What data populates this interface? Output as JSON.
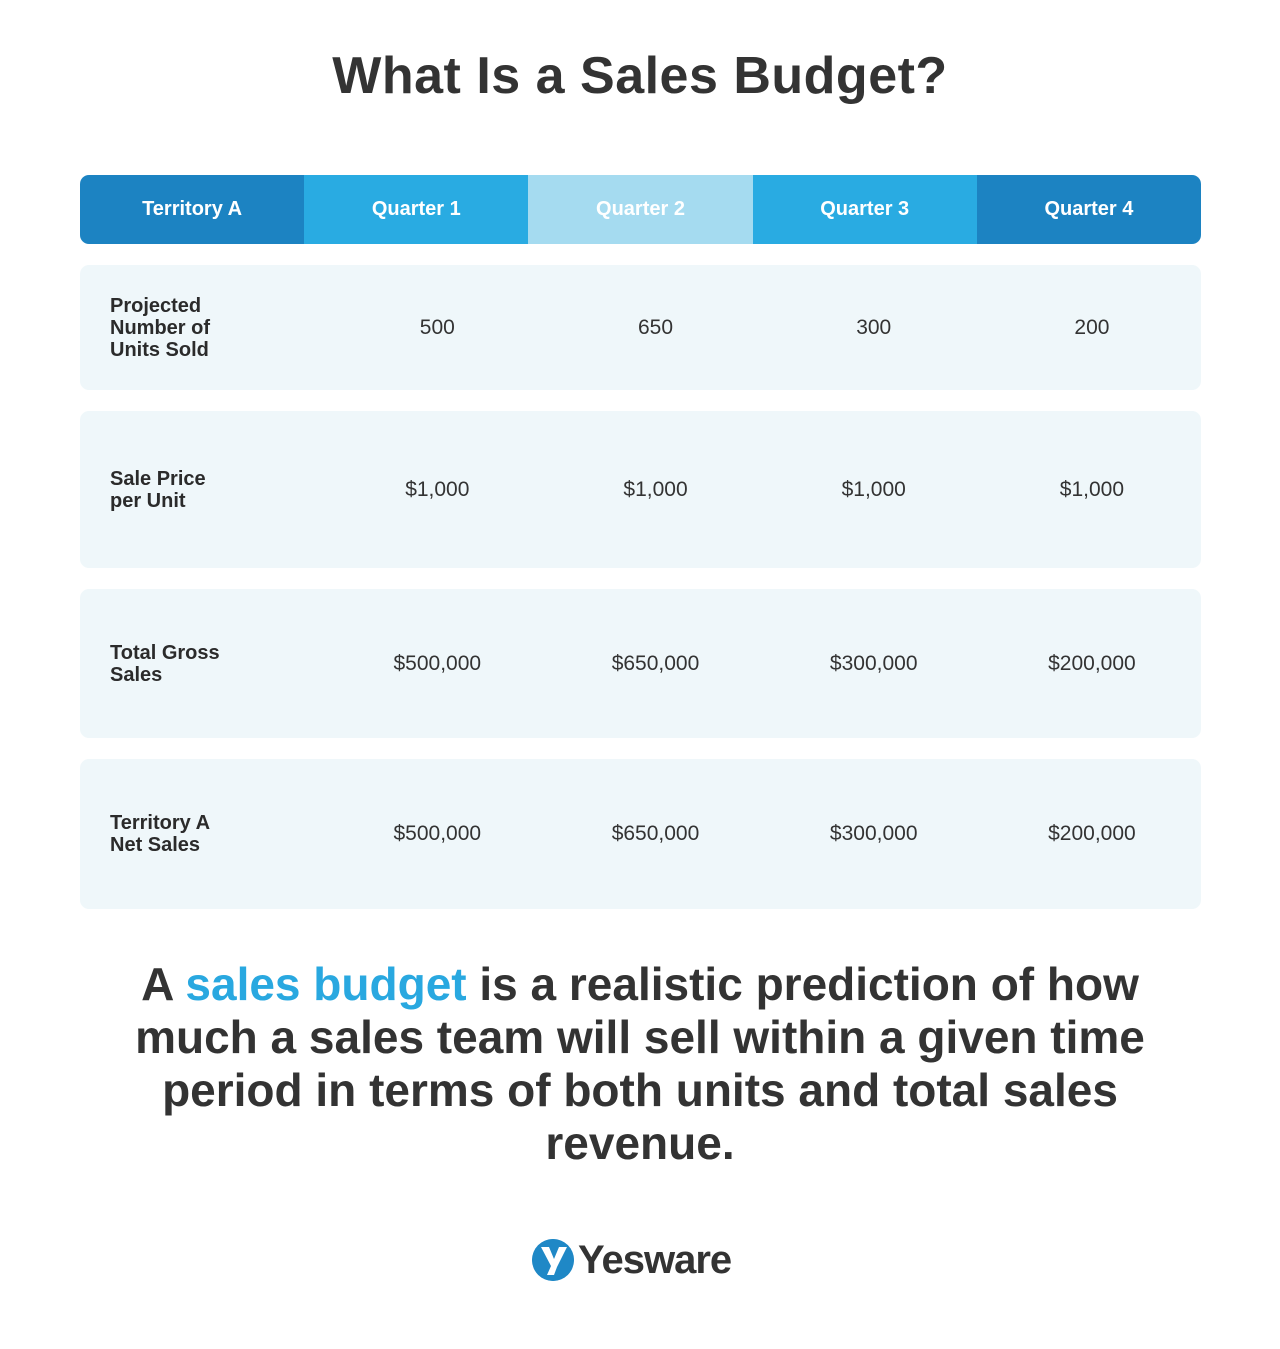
{
  "title": "What Is a Sales Budget?",
  "table": {
    "headers": [
      {
        "label": "Territory A",
        "color": "#1c83c2"
      },
      {
        "label": "Quarter 1",
        "color": "#29abe2"
      },
      {
        "label": "Quarter 2",
        "color": "#a5dbf0"
      },
      {
        "label": "Quarter 3",
        "color": "#29abe2"
      },
      {
        "label": "Quarter 4",
        "color": "#1c83c2"
      }
    ],
    "rows": [
      {
        "label": "Projected Number of Units Sold",
        "values": [
          "500",
          "650",
          "300",
          "200"
        ]
      },
      {
        "label": "Sale Price per Unit",
        "values": [
          "$1,000",
          "$1,000",
          "$1,000",
          "$1,000"
        ]
      },
      {
        "label": "Total Gross Sales",
        "values": [
          "$500,000",
          "$650,000",
          "$300,000",
          "$200,000"
        ]
      },
      {
        "label": "Territory A Net Sales",
        "values": [
          "$500,000",
          "$650,000",
          "$300,000",
          "$200,000"
        ]
      }
    ],
    "row_background": "#eff7fa"
  },
  "description": {
    "prefix": "A ",
    "highlight": "sales budget",
    "suffix": " is a realistic prediction of how much a sales team will sell within a given time period in terms of both units and total sales revenue.",
    "highlight_color": "#29a8e0"
  },
  "logo": {
    "text": "Yesware",
    "icon": "yesware-logo-icon",
    "color": "#1f88c6"
  }
}
